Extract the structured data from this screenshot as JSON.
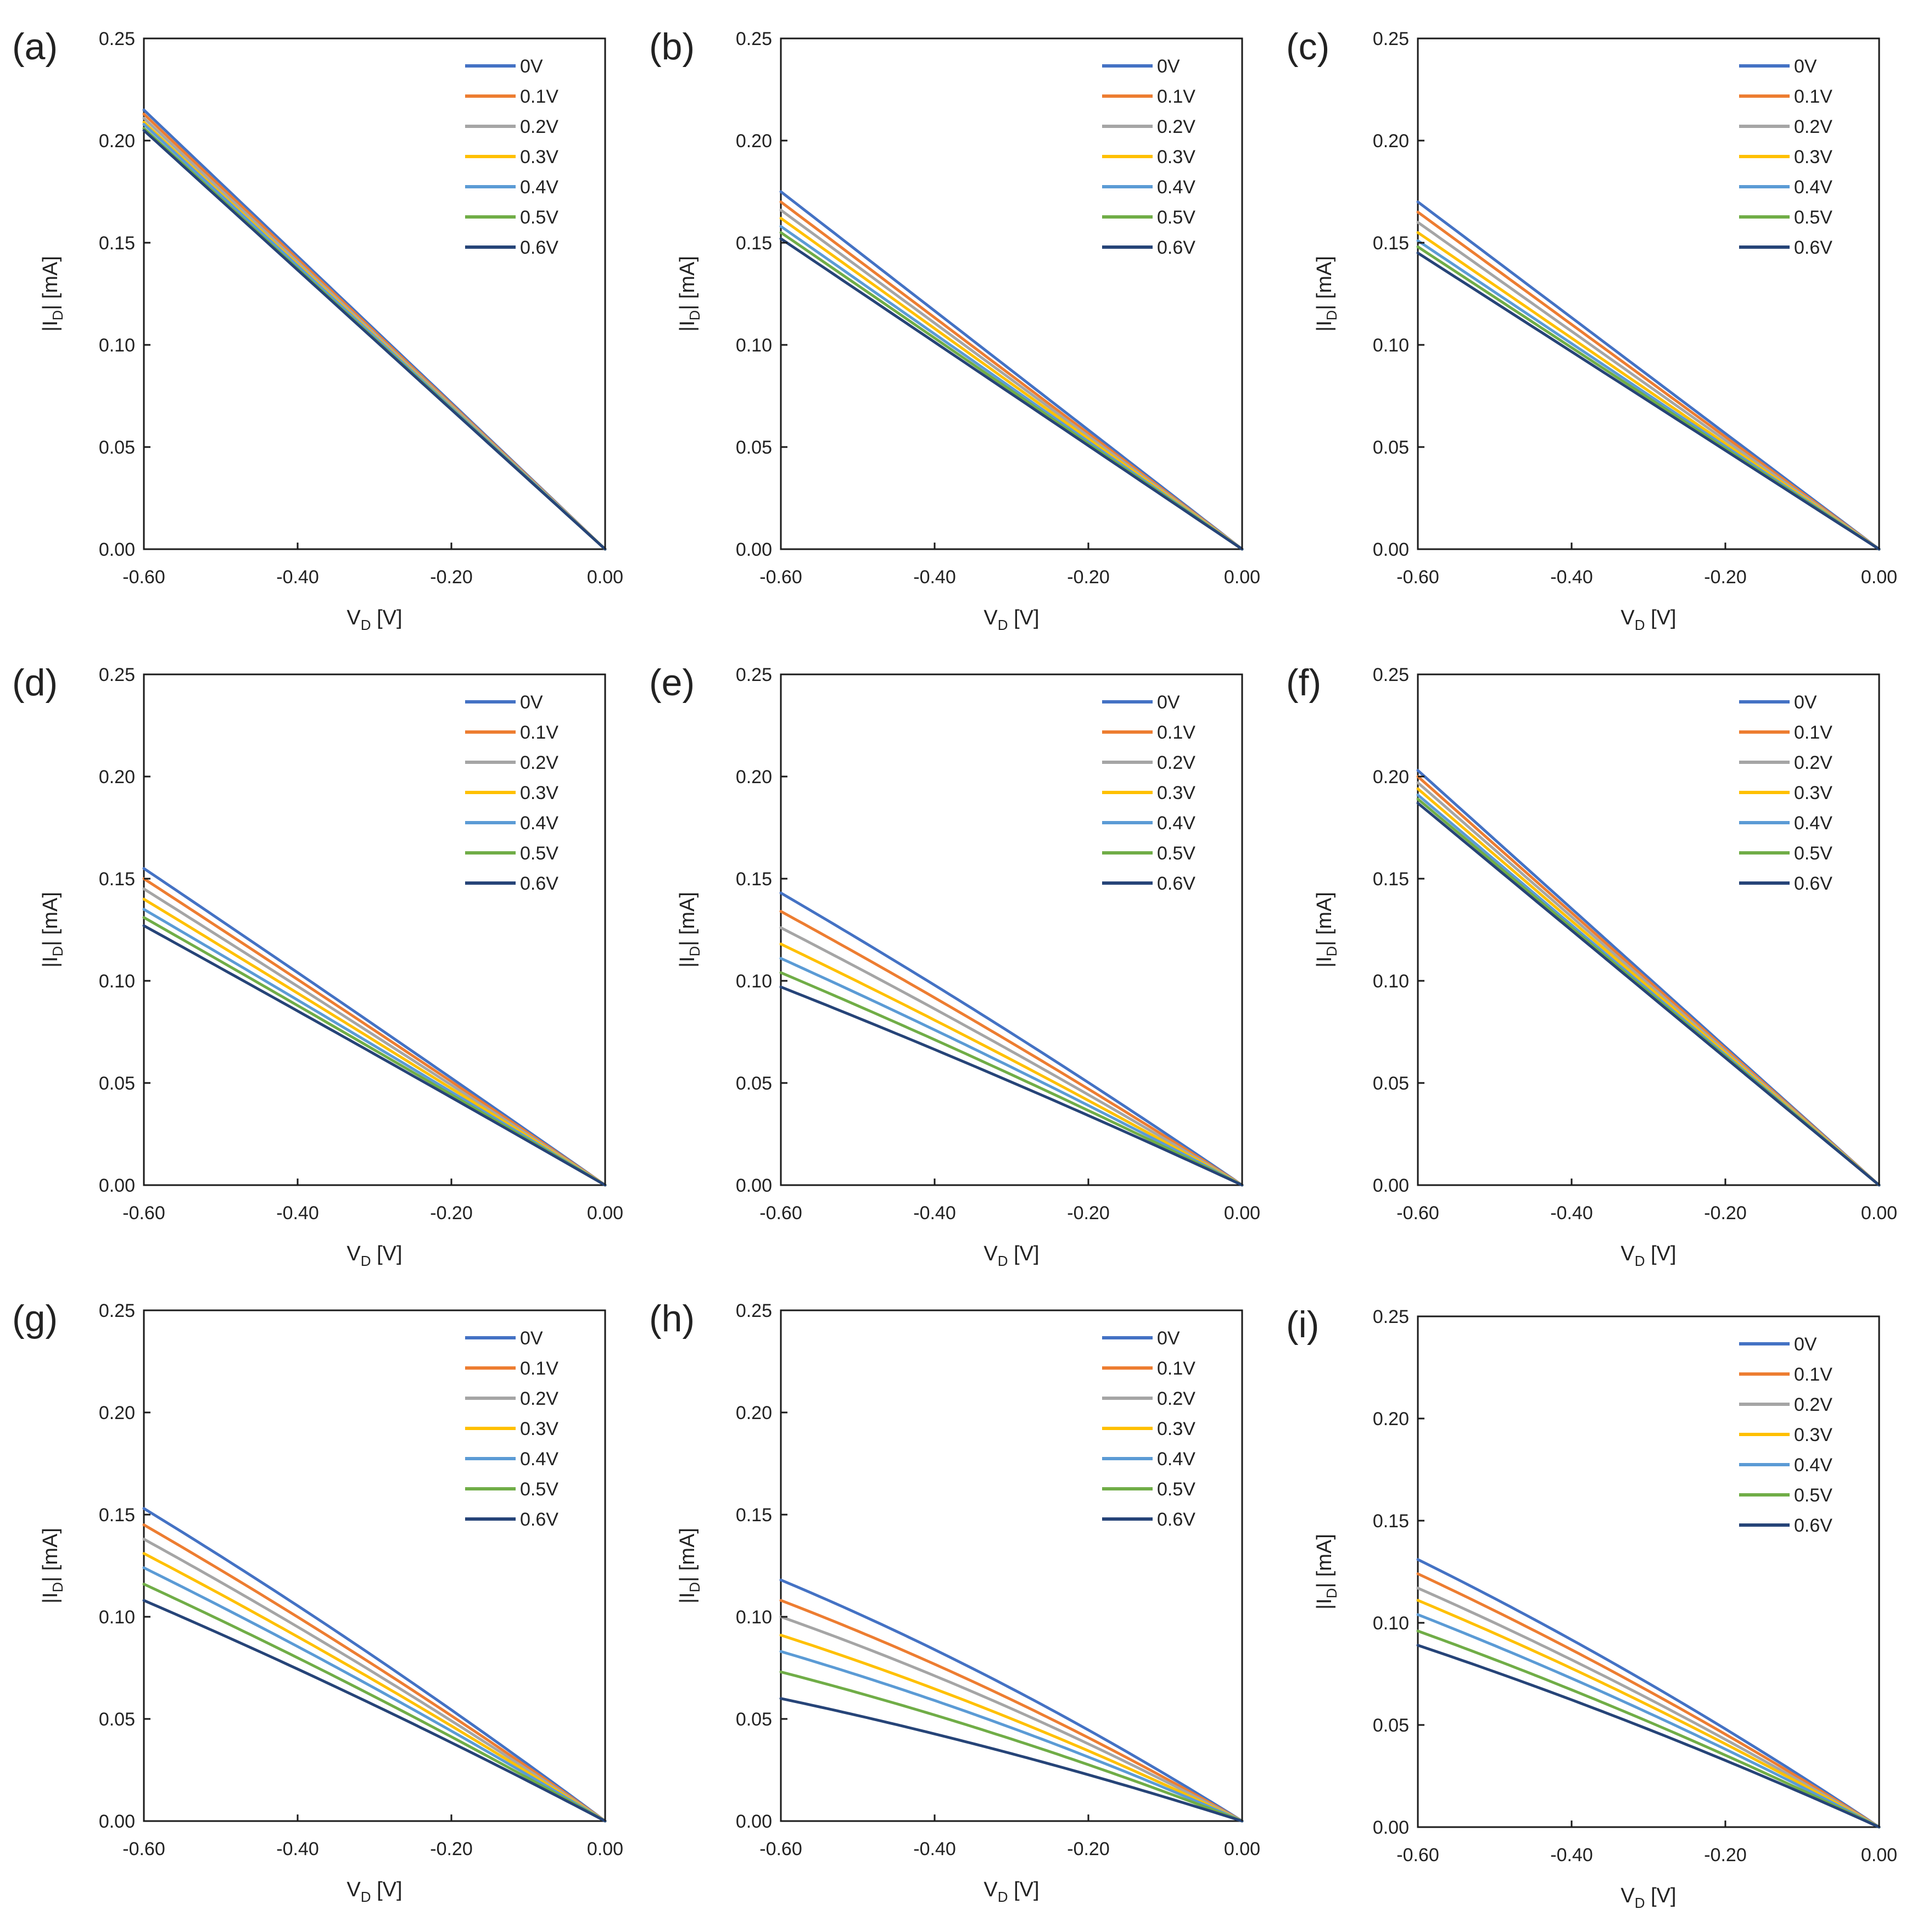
{
  "series_meta": [
    {
      "name": "0V",
      "color": "#4472C4"
    },
    {
      "name": "0.1V",
      "color": "#ED7D31"
    },
    {
      "name": "0.2V",
      "color": "#A5A5A5"
    },
    {
      "name": "0.3V",
      "color": "#FFC000"
    },
    {
      "name": "0.4V",
      "color": "#5B9BD5"
    },
    {
      "name": "0.5V",
      "color": "#70AD47"
    },
    {
      "name": "0.6V",
      "color": "#264478"
    }
  ],
  "chart_data": [
    {
      "panel_label": "(a)",
      "type": "line",
      "xlabel": "VD [V]",
      "ylabel": "|ID| [mA]",
      "xlim": [
        -0.6,
        0.0
      ],
      "ylim": [
        0.0,
        0.25
      ],
      "xticks": [
        "-0.60",
        "-0.40",
        "-0.20",
        "0.00"
      ],
      "yticks": [
        "0.00",
        "0.05",
        "0.10",
        "0.15",
        "0.20",
        "0.25"
      ],
      "legend_position": "top-right",
      "curvature": 0.0,
      "series": [
        {
          "name": "0V",
          "values_at_xmin": 0.215
        },
        {
          "name": "0.1V",
          "values_at_xmin": 0.213
        },
        {
          "name": "0.2V",
          "values_at_xmin": 0.211
        },
        {
          "name": "0.3V",
          "values_at_xmin": 0.209
        },
        {
          "name": "0.4V",
          "values_at_xmin": 0.208
        },
        {
          "name": "0.5V",
          "values_at_xmin": 0.206
        },
        {
          "name": "0.6V",
          "values_at_xmin": 0.205
        }
      ]
    },
    {
      "panel_label": "(b)",
      "type": "line",
      "xlabel": "VD [V]",
      "ylabel": "|ID| [mA]",
      "xlim": [
        -0.6,
        0.0
      ],
      "ylim": [
        0.0,
        0.25
      ],
      "xticks": [
        "-0.60",
        "-0.40",
        "-0.20",
        "0.00"
      ],
      "yticks": [
        "0.00",
        "0.05",
        "0.10",
        "0.15",
        "0.20",
        "0.25"
      ],
      "legend_position": "top-right",
      "curvature": 0.0,
      "series": [
        {
          "name": "0V",
          "values_at_xmin": 0.175
        },
        {
          "name": "0.1V",
          "values_at_xmin": 0.17
        },
        {
          "name": "0.2V",
          "values_at_xmin": 0.166
        },
        {
          "name": "0.3V",
          "values_at_xmin": 0.162
        },
        {
          "name": "0.4V",
          "values_at_xmin": 0.158
        },
        {
          "name": "0.5V",
          "values_at_xmin": 0.155
        },
        {
          "name": "0.6V",
          "values_at_xmin": 0.152
        }
      ]
    },
    {
      "panel_label": "(c)",
      "type": "line",
      "xlabel": "VD [V]",
      "ylabel": "|ID| [mA]",
      "xlim": [
        -0.6,
        0.0
      ],
      "ylim": [
        0.0,
        0.25
      ],
      "xticks": [
        "-0.60",
        "-0.40",
        "-0.20",
        "0.00"
      ],
      "yticks": [
        "0.00",
        "0.05",
        "0.10",
        "0.15",
        "0.20",
        "0.25"
      ],
      "legend_position": "top-right",
      "curvature": 0.0,
      "series": [
        {
          "name": "0V",
          "values_at_xmin": 0.17
        },
        {
          "name": "0.1V",
          "values_at_xmin": 0.165
        },
        {
          "name": "0.2V",
          "values_at_xmin": 0.16
        },
        {
          "name": "0.3V",
          "values_at_xmin": 0.155
        },
        {
          "name": "0.4V",
          "values_at_xmin": 0.151
        },
        {
          "name": "0.5V",
          "values_at_xmin": 0.148
        },
        {
          "name": "0.6V",
          "values_at_xmin": 0.145
        }
      ]
    },
    {
      "panel_label": "(d)",
      "type": "line",
      "xlabel": "VD [V]",
      "ylabel": "|ID| [mA]",
      "xlim": [
        -0.6,
        0.0
      ],
      "ylim": [
        0.0,
        0.25
      ],
      "xticks": [
        "-0.60",
        "-0.40",
        "-0.20",
        "0.00"
      ],
      "yticks": [
        "0.00",
        "0.05",
        "0.10",
        "0.15",
        "0.20",
        "0.25"
      ],
      "legend_position": "top-right",
      "curvature": 0.02,
      "series": [
        {
          "name": "0V",
          "values_at_xmin": 0.155
        },
        {
          "name": "0.1V",
          "values_at_xmin": 0.15
        },
        {
          "name": "0.2V",
          "values_at_xmin": 0.145
        },
        {
          "name": "0.3V",
          "values_at_xmin": 0.14
        },
        {
          "name": "0.4V",
          "values_at_xmin": 0.135
        },
        {
          "name": "0.5V",
          "values_at_xmin": 0.131
        },
        {
          "name": "0.6V",
          "values_at_xmin": 0.127
        }
      ]
    },
    {
      "panel_label": "(e)",
      "type": "line",
      "xlabel": "VD [V]",
      "ylabel": "|ID| [mA]",
      "xlim": [
        -0.6,
        0.0
      ],
      "ylim": [
        0.0,
        0.25
      ],
      "xticks": [
        "-0.60",
        "-0.40",
        "-0.20",
        "0.00"
      ],
      "yticks": [
        "0.00",
        "0.05",
        "0.10",
        "0.15",
        "0.20",
        "0.25"
      ],
      "legend_position": "top-right",
      "curvature": 0.08,
      "series": [
        {
          "name": "0V",
          "values_at_xmin": 0.143
        },
        {
          "name": "0.1V",
          "values_at_xmin": 0.134
        },
        {
          "name": "0.2V",
          "values_at_xmin": 0.126
        },
        {
          "name": "0.3V",
          "values_at_xmin": 0.118
        },
        {
          "name": "0.4V",
          "values_at_xmin": 0.111
        },
        {
          "name": "0.5V",
          "values_at_xmin": 0.104
        },
        {
          "name": "0.6V",
          "values_at_xmin": 0.097
        }
      ]
    },
    {
      "panel_label": "(f)",
      "type": "line",
      "xlabel": "VD [V]",
      "ylabel": "|ID| [mA]",
      "xlim": [
        -0.6,
        0.0
      ],
      "ylim": [
        0.0,
        0.25
      ],
      "xticks": [
        "-0.60",
        "-0.40",
        "-0.20",
        "0.00"
      ],
      "yticks": [
        "0.00",
        "0.05",
        "0.10",
        "0.15",
        "0.20",
        "0.25"
      ],
      "legend_position": "top-right",
      "curvature": 0.0,
      "series": [
        {
          "name": "0V",
          "values_at_xmin": 0.203
        },
        {
          "name": "0.1V",
          "values_at_xmin": 0.2
        },
        {
          "name": "0.2V",
          "values_at_xmin": 0.197
        },
        {
          "name": "0.3V",
          "values_at_xmin": 0.194
        },
        {
          "name": "0.4V",
          "values_at_xmin": 0.191
        },
        {
          "name": "0.5V",
          "values_at_xmin": 0.189
        },
        {
          "name": "0.6V",
          "values_at_xmin": 0.187
        }
      ]
    },
    {
      "panel_label": "(g)",
      "type": "line",
      "xlabel": "VD [V]",
      "ylabel": "|ID| [mA]",
      "xlim": [
        -0.6,
        0.0
      ],
      "ylim": [
        0.0,
        0.25
      ],
      "xticks": [
        "-0.60",
        "-0.40",
        "-0.20",
        "0.00"
      ],
      "yticks": [
        "0.00",
        "0.05",
        "0.10",
        "0.15",
        "0.20",
        "0.25"
      ],
      "legend_position": "top-right",
      "curvature": 0.1,
      "series": [
        {
          "name": "0V",
          "values_at_xmin": 0.153
        },
        {
          "name": "0.1V",
          "values_at_xmin": 0.145
        },
        {
          "name": "0.2V",
          "values_at_xmin": 0.138
        },
        {
          "name": "0.3V",
          "values_at_xmin": 0.131
        },
        {
          "name": "0.4V",
          "values_at_xmin": 0.124
        },
        {
          "name": "0.5V",
          "values_at_xmin": 0.116
        },
        {
          "name": "0.6V",
          "values_at_xmin": 0.108
        }
      ]
    },
    {
      "panel_label": "(h)",
      "type": "line",
      "xlabel": "VD [V]",
      "ylabel": "|ID| [mA]",
      "xlim": [
        -0.6,
        0.0
      ],
      "ylim": [
        0.0,
        0.25
      ],
      "xticks": [
        "-0.60",
        "-0.40",
        "-0.20",
        "0.00"
      ],
      "yticks": [
        "0.00",
        "0.05",
        "0.10",
        "0.15",
        "0.20",
        "0.25"
      ],
      "legend_position": "top-right",
      "curvature": 0.2,
      "series": [
        {
          "name": "0V",
          "values_at_xmin": 0.118
        },
        {
          "name": "0.1V",
          "values_at_xmin": 0.108
        },
        {
          "name": "0.2V",
          "values_at_xmin": 0.1
        },
        {
          "name": "0.3V",
          "values_at_xmin": 0.091
        },
        {
          "name": "0.4V",
          "values_at_xmin": 0.083
        },
        {
          "name": "0.5V",
          "values_at_xmin": 0.073
        },
        {
          "name": "0.6V",
          "values_at_xmin": 0.06
        }
      ]
    },
    {
      "panel_label": "(i)",
      "type": "line",
      "xlabel": "VD [V]",
      "ylabel": "|ID| [mA]",
      "xlim": [
        -0.6,
        0.0
      ],
      "ylim": [
        0.0,
        0.25
      ],
      "xticks": [
        "-0.60",
        "-0.40",
        "-0.20",
        "0.00"
      ],
      "yticks": [
        "0.00",
        "0.05",
        "0.10",
        "0.15",
        "0.20",
        "0.25"
      ],
      "legend_position": "top-right",
      "curvature": 0.15,
      "series": [
        {
          "name": "0V",
          "values_at_xmin": 0.131
        },
        {
          "name": "0.1V",
          "values_at_xmin": 0.124
        },
        {
          "name": "0.2V",
          "values_at_xmin": 0.117
        },
        {
          "name": "0.3V",
          "values_at_xmin": 0.111
        },
        {
          "name": "0.4V",
          "values_at_xmin": 0.104
        },
        {
          "name": "0.5V",
          "values_at_xmin": 0.096
        },
        {
          "name": "0.6V",
          "values_at_xmin": 0.089
        }
      ]
    }
  ]
}
